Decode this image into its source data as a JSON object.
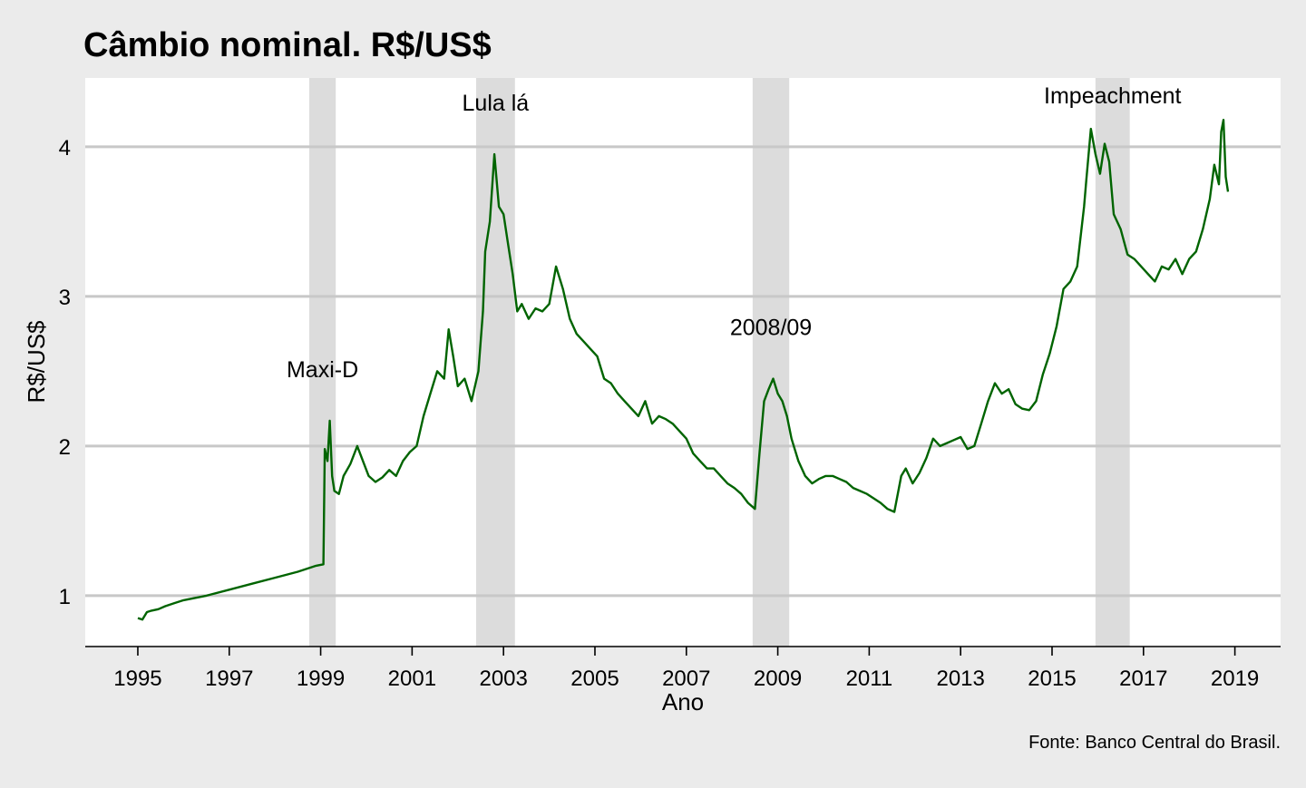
{
  "chart_data": {
    "type": "line",
    "title": "Câmbio nominal. R$/US$",
    "xlabel": "Ano",
    "ylabel": "R$/US$",
    "caption": "Fonte: Banco Central do Brasil.",
    "xlim": [
      1993.85,
      2020.0
    ],
    "ylim": [
      0.66,
      4.46
    ],
    "x_ticks": [
      1995,
      1997,
      1999,
      2001,
      2003,
      2005,
      2007,
      2009,
      2011,
      2013,
      2015,
      2017,
      2019
    ],
    "y_ticks": [
      1,
      2,
      3,
      4
    ],
    "grid": "horizontal",
    "colors": {
      "line": "#006400",
      "band": "#dcdcdc",
      "panel": "#ffffff",
      "background": "#ebebeb",
      "gridline": "#c8c8c8"
    },
    "shaded_periods": [
      {
        "label": "Maxi-D",
        "start": 1998.75,
        "end": 1999.33
      },
      {
        "label": "Lula lá",
        "start": 2002.4,
        "end": 2003.25
      },
      {
        "label": "2008/09",
        "start": 2008.45,
        "end": 2009.25
      },
      {
        "label": "Impeachment",
        "start": 2015.95,
        "end": 2016.7
      }
    ],
    "series": [
      {
        "x": [
          1995.0,
          1995.1,
          1995.2,
          1995.3,
          1995.45,
          1995.6,
          1995.8,
          1996.0,
          1996.5,
          1997.0,
          1997.5,
          1998.0,
          1998.5,
          1998.9,
          1999.06,
          1999.09,
          1999.15,
          1999.2,
          1999.25,
          1999.3,
          1999.4,
          1999.5,
          1999.65,
          1999.8,
          1999.9,
          2000.05,
          2000.2,
          2000.35,
          2000.5,
          2000.65,
          2000.8,
          2000.95,
          2001.1,
          2001.25,
          2001.4,
          2001.55,
          2001.7,
          2001.8,
          2001.9,
          2002.0,
          2002.15,
          2002.3,
          2002.45,
          2002.55,
          2002.6,
          2002.7,
          2002.8,
          2002.9,
          2003.0,
          2003.1,
          2003.2,
          2003.3,
          2003.4,
          2003.55,
          2003.7,
          2003.85,
          2004.0,
          2004.15,
          2004.3,
          2004.45,
          2004.6,
          2004.75,
          2004.9,
          2005.05,
          2005.2,
          2005.35,
          2005.5,
          2005.65,
          2005.8,
          2005.95,
          2006.1,
          2006.25,
          2006.4,
          2006.55,
          2006.7,
          2006.85,
          2007.0,
          2007.15,
          2007.3,
          2007.45,
          2007.6,
          2007.75,
          2007.9,
          2008.05,
          2008.2,
          2008.35,
          2008.5,
          2008.6,
          2008.7,
          2008.8,
          2008.9,
          2009.0,
          2009.1,
          2009.2,
          2009.3,
          2009.45,
          2009.6,
          2009.75,
          2009.9,
          2010.05,
          2010.2,
          2010.35,
          2010.5,
          2010.65,
          2010.8,
          2010.95,
          2011.1,
          2011.25,
          2011.4,
          2011.55,
          2011.7,
          2011.8,
          2011.95,
          2012.1,
          2012.25,
          2012.4,
          2012.55,
          2012.7,
          2012.85,
          2013.0,
          2013.15,
          2013.3,
          2013.45,
          2013.6,
          2013.75,
          2013.9,
          2014.05,
          2014.2,
          2014.35,
          2014.5,
          2014.65,
          2014.8,
          2014.95,
          2015.1,
          2015.25,
          2015.4,
          2015.55,
          2015.7,
          2015.75,
          2015.85,
          2015.95,
          2016.05,
          2016.15,
          2016.25,
          2016.35,
          2016.5,
          2016.65,
          2016.8,
          2016.95,
          2017.1,
          2017.25,
          2017.4,
          2017.55,
          2017.7,
          2017.85,
          2018.0,
          2018.15,
          2018.3,
          2018.45,
          2018.55,
          2018.65,
          2018.7,
          2018.75,
          2018.8,
          2018.85
        ],
        "y": [
          0.85,
          0.84,
          0.89,
          0.9,
          0.91,
          0.93,
          0.95,
          0.97,
          1.0,
          1.04,
          1.08,
          1.12,
          1.16,
          1.2,
          1.21,
          1.98,
          1.9,
          2.17,
          1.8,
          1.7,
          1.68,
          1.8,
          1.88,
          2.0,
          1.92,
          1.8,
          1.76,
          1.79,
          1.84,
          1.8,
          1.9,
          1.96,
          2.0,
          2.2,
          2.35,
          2.5,
          2.45,
          2.78,
          2.6,
          2.4,
          2.45,
          2.3,
          2.5,
          2.9,
          3.3,
          3.5,
          3.95,
          3.6,
          3.55,
          3.35,
          3.15,
          2.9,
          2.95,
          2.85,
          2.92,
          2.9,
          2.95,
          3.2,
          3.05,
          2.85,
          2.75,
          2.7,
          2.65,
          2.6,
          2.45,
          2.42,
          2.35,
          2.3,
          2.25,
          2.2,
          2.3,
          2.15,
          2.2,
          2.18,
          2.15,
          2.1,
          2.05,
          1.95,
          1.9,
          1.85,
          1.85,
          1.8,
          1.75,
          1.72,
          1.68,
          1.62,
          1.58,
          1.95,
          2.3,
          2.38,
          2.45,
          2.35,
          2.3,
          2.2,
          2.05,
          1.9,
          1.8,
          1.75,
          1.78,
          1.8,
          1.8,
          1.78,
          1.76,
          1.72,
          1.7,
          1.68,
          1.65,
          1.62,
          1.58,
          1.56,
          1.8,
          1.85,
          1.75,
          1.82,
          1.92,
          2.05,
          2.0,
          2.02,
          2.04,
          2.06,
          1.98,
          2.0,
          2.15,
          2.3,
          2.42,
          2.35,
          2.38,
          2.28,
          2.25,
          2.24,
          2.3,
          2.48,
          2.62,
          2.8,
          3.05,
          3.1,
          3.2,
          3.6,
          3.78,
          4.12,
          3.95,
          3.82,
          4.02,
          3.9,
          3.55,
          3.45,
          3.28,
          3.25,
          3.2,
          3.15,
          3.1,
          3.2,
          3.18,
          3.25,
          3.15,
          3.25,
          3.3,
          3.45,
          3.65,
          3.88,
          3.75,
          4.1,
          4.18,
          3.8,
          3.7
        ]
      }
    ]
  }
}
